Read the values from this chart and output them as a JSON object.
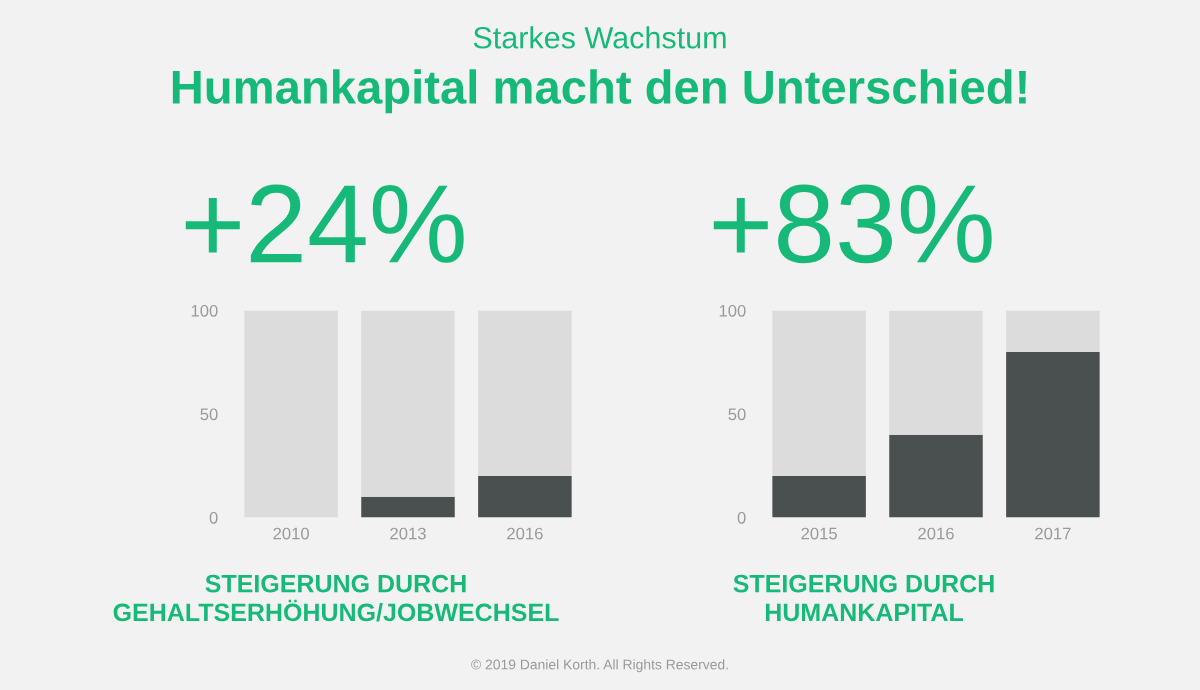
{
  "chart_data": [
    {
      "type": "bar",
      "stacked": true,
      "title": "+24%",
      "subtitle": "Starkes Wachstum",
      "categories": [
        "2010",
        "2013",
        "2016"
      ],
      "series": [
        {
          "color": "#4a4f4f",
          "values": [
            0,
            10,
            20
          ]
        },
        {
          "color": "#dcdcdc",
          "values": [
            100,
            90,
            80
          ]
        }
      ],
      "ylim": [
        0,
        100
      ],
      "yticks": [
        0,
        50,
        100
      ],
      "grid": false,
      "annotations": [
        "Humankapital macht den Unterschied!",
        "STEIGERUNG DURCH\nGEHALTSERHÖHUNG/JOBWECHSEL"
      ]
    },
    {
      "type": "bar",
      "stacked": true,
      "title": "+83%",
      "categories": [
        "2015",
        "2016",
        "2017"
      ],
      "series": [
        {
          "color": "#4a4f4f",
          "values": [
            20,
            40,
            80
          ]
        },
        {
          "color": "#dcdcdc",
          "values": [
            80,
            60,
            20
          ]
        }
      ],
      "ylim": [
        0,
        100
      ],
      "yticks": [
        0,
        50,
        100
      ],
      "grid": false,
      "annotations": [
        "STEIGERUNG DURCH\nHUMANKAPITAL",
        "© 2019 Daniel Korth. All Rights Reserved."
      ]
    }
  ]
}
